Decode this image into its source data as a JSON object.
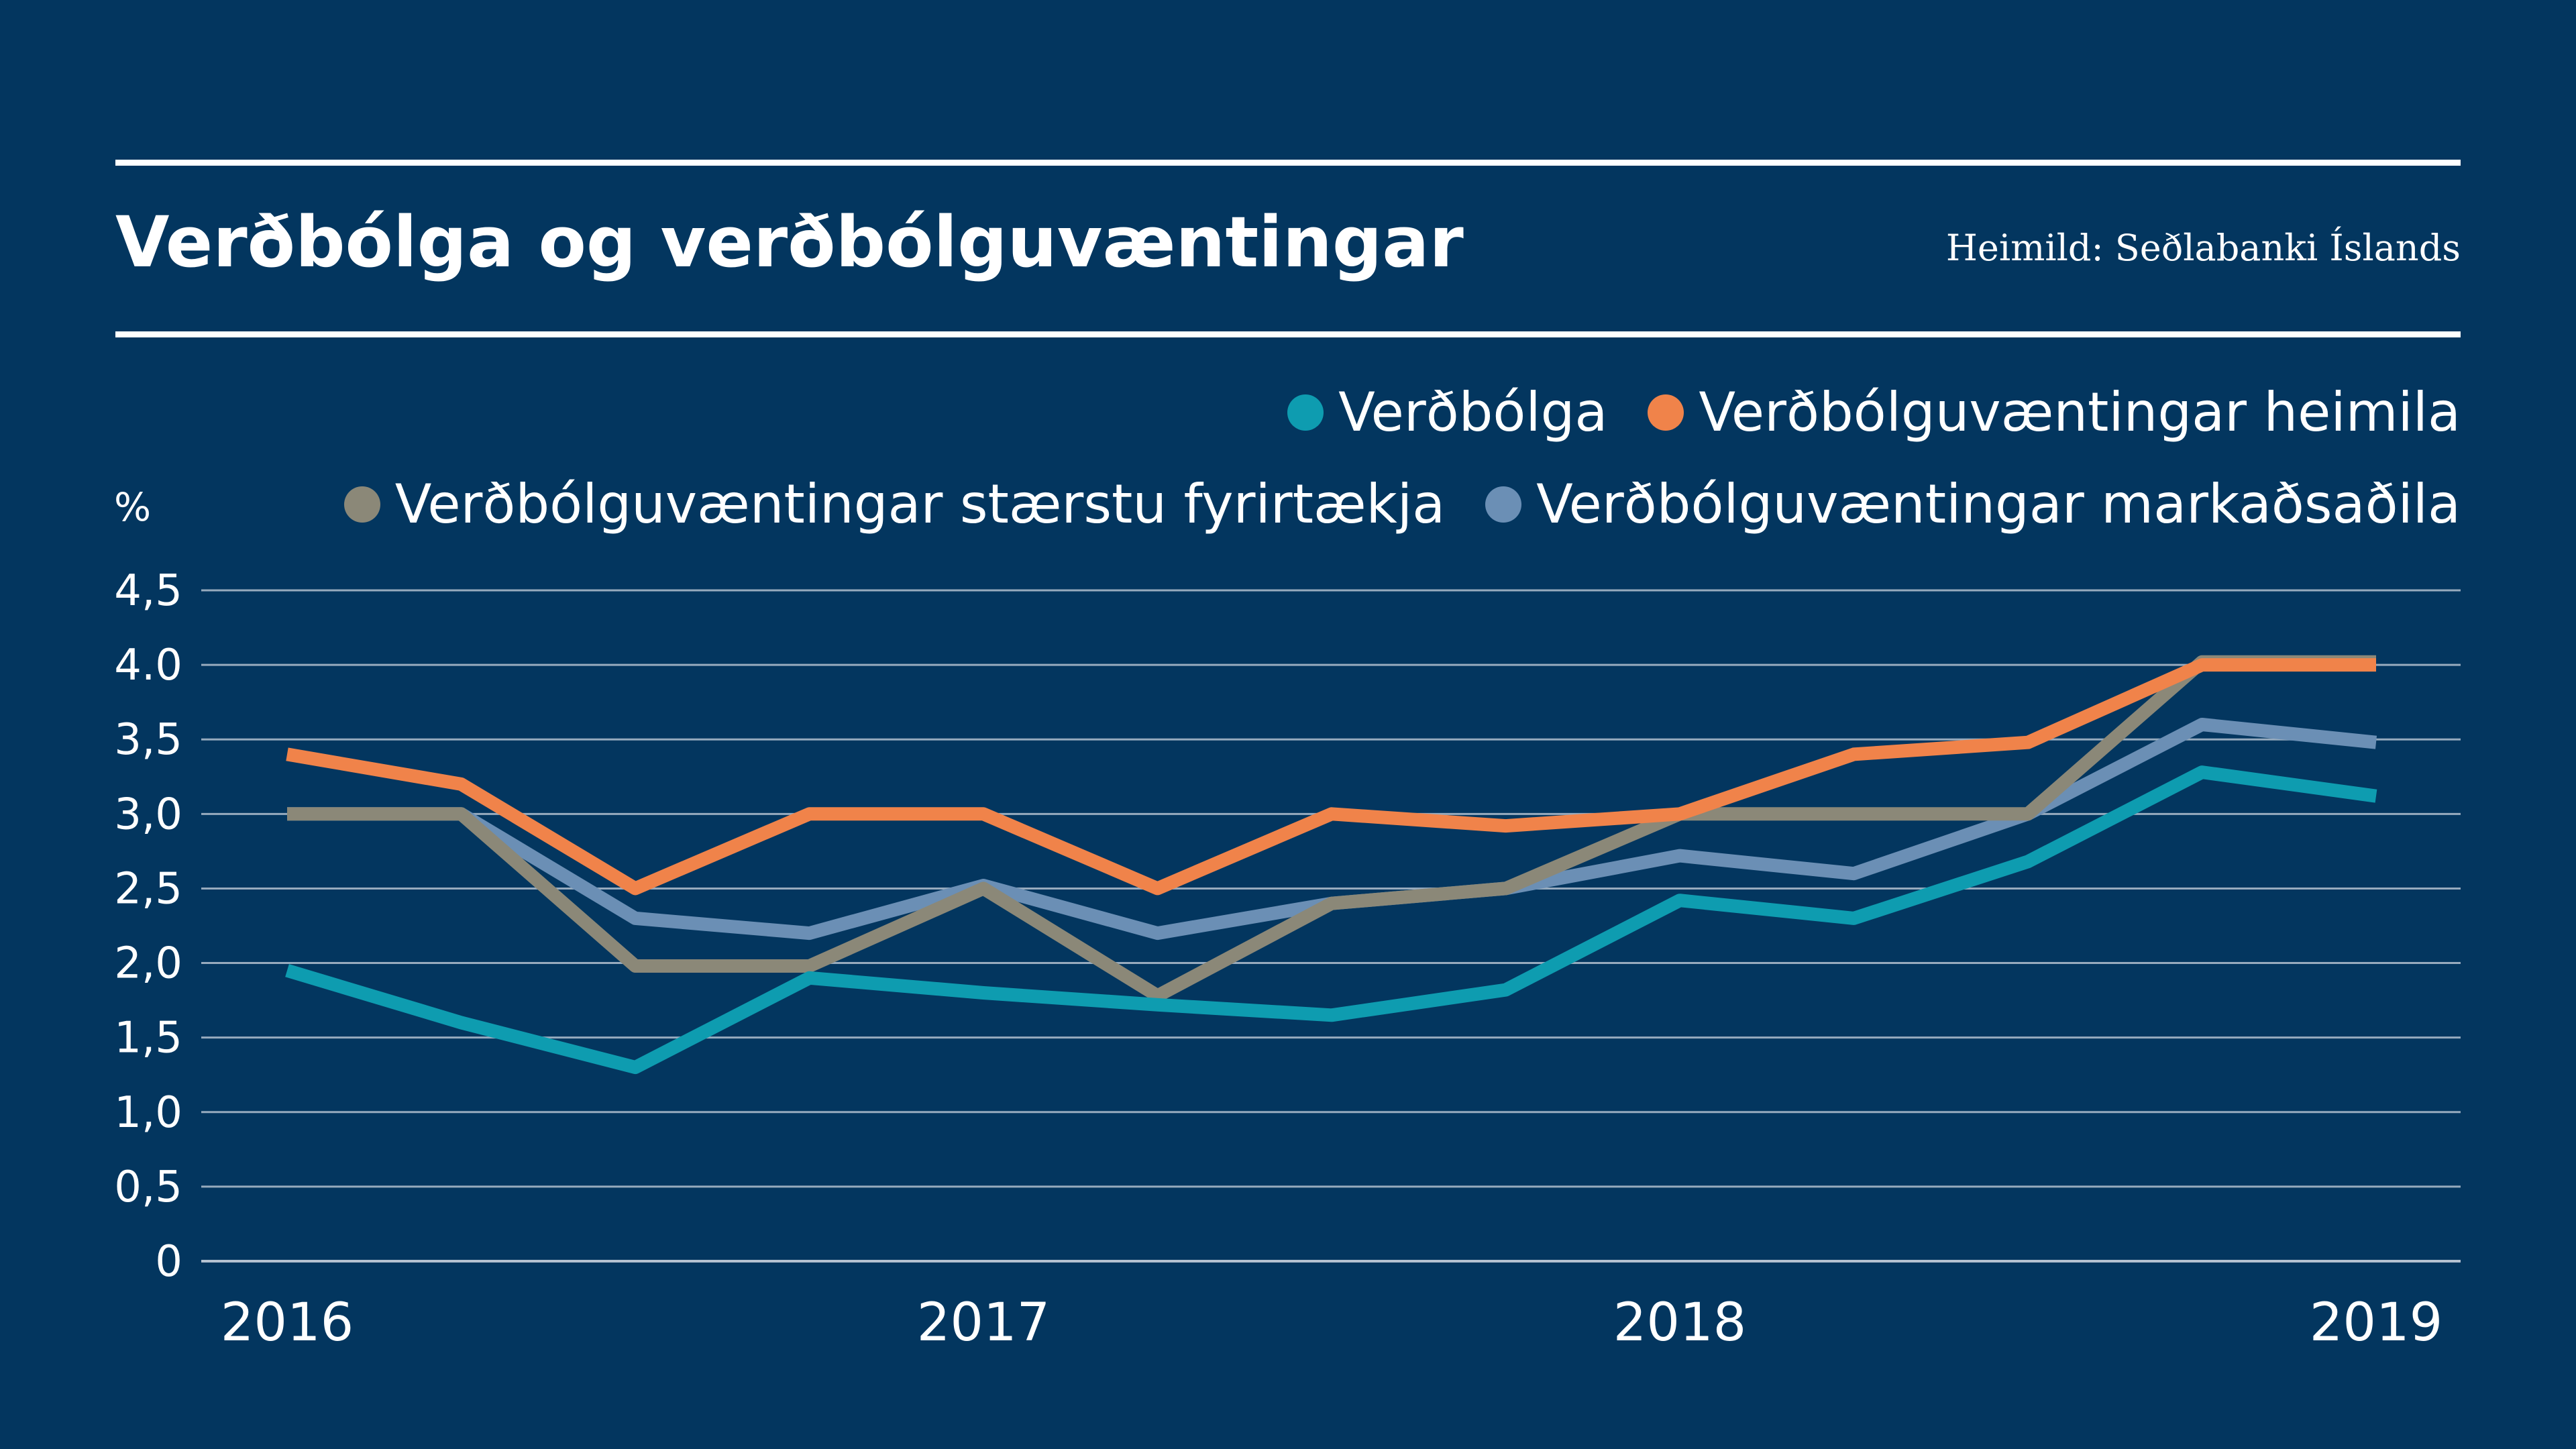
{
  "header": {
    "title": "Verðbólga og verðbólguvæntingar",
    "source": "Heimild: Seðlabanki Íslands"
  },
  "legend": {
    "row1": [
      {
        "label": "Verðbólga",
        "color": "#0e9cb0"
      },
      {
        "label": "Verðbólguvæntingar heimila",
        "color": "#f0834a"
      }
    ],
    "row2": [
      {
        "label": "Verðbólguvæntingar stærstu fyrirtækja",
        "color": "#8b8878"
      },
      {
        "label": "Verðbólguvæntingar markaðsaðila",
        "color": "#6b8fb5"
      }
    ]
  },
  "chart_data": {
    "type": "line",
    "ylabel": "%",
    "ylim": [
      0,
      4.5
    ],
    "yticks": [
      {
        "value": 0,
        "label": "0"
      },
      {
        "value": 0.5,
        "label": "0,5"
      },
      {
        "value": 1.0,
        "label": "1,0"
      },
      {
        "value": 1.5,
        "label": "1,5"
      },
      {
        "value": 2.0,
        "label": "2,0"
      },
      {
        "value": 2.5,
        "label": "2,5"
      },
      {
        "value": 3.0,
        "label": "3,0"
      },
      {
        "value": 3.5,
        "label": "3,5"
      },
      {
        "value": 4.0,
        "label": "4.0"
      },
      {
        "value": 4.5,
        "label": "4,5"
      }
    ],
    "xticks": [
      "2016",
      "2017",
      "2018",
      "2019"
    ],
    "x": [
      "2016Q1",
      "2016Q2",
      "2016Q3",
      "2016Q4",
      "2017Q1",
      "2017Q2",
      "2017Q3",
      "2017Q4",
      "2018Q1",
      "2018Q2",
      "2018Q3",
      "2018Q4",
      "2019Q1"
    ],
    "grid": true,
    "legend_position": "top-right",
    "series": [
      {
        "name": "Verðbólga",
        "color": "#0e9cb0",
        "values": [
          1.95,
          1.6,
          1.3,
          1.9,
          1.8,
          1.72,
          1.65,
          1.82,
          2.42,
          2.3,
          2.68,
          3.28,
          3.12
        ]
      },
      {
        "name": "Verðbólguvæntingar heimila",
        "color": "#f0834a",
        "values": [
          3.4,
          3.2,
          2.5,
          3.0,
          3.0,
          2.5,
          3.0,
          2.92,
          3.0,
          3.4,
          3.48,
          4.0,
          4.0
        ]
      },
      {
        "name": "Verðbólguvæntingar stærstu fyrirtækja",
        "color": "#8b8878",
        "values": [
          3.0,
          3.0,
          1.98,
          1.98,
          2.5,
          1.78,
          2.4,
          2.5,
          3.0,
          3.0,
          3.0,
          4.02,
          4.02
        ]
      },
      {
        "name": "Verðbólguvæntingar markaðsaðila",
        "color": "#6b8fb5",
        "values": [
          3.0,
          3.0,
          2.3,
          2.2,
          2.52,
          2.2,
          2.4,
          2.5,
          2.72,
          2.6,
          3.0,
          3.6,
          3.48
        ]
      }
    ]
  }
}
